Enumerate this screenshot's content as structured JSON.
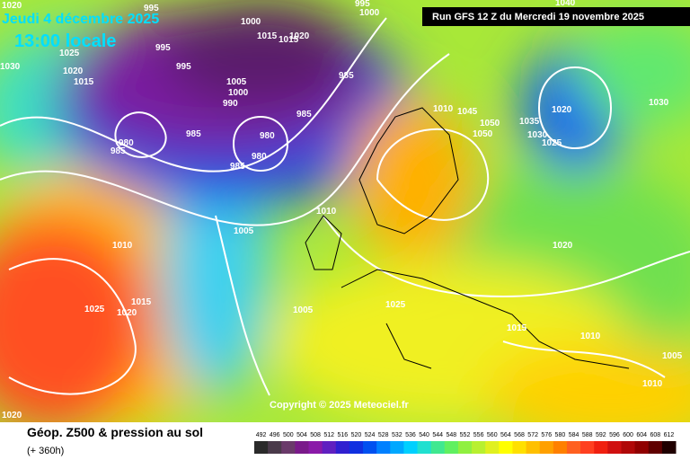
{
  "header": {
    "date": "Jeudi 4 décembre 2025",
    "time": "13:00 locale",
    "run": "Run GFS 12 Z du Mercredi 19 novembre 2025"
  },
  "copyright": "Copyright © 2025 Meteociel.fr",
  "footer": {
    "title": "Géop. Z500 & pression au sol",
    "lead": "(+ 360h)"
  },
  "isobar_labels": [
    "1020",
    "995",
    "995",
    "1000",
    "1000",
    "1015",
    "1015",
    "1020",
    "995",
    "1025",
    "1030",
    "1020",
    "995",
    "1015",
    "1005",
    "985",
    "1000",
    "990",
    "1040",
    "1020",
    "1030",
    "1010",
    "1045",
    "1050",
    "1050",
    "1035",
    "1030",
    "1025",
    "985",
    "985",
    "980",
    "985",
    "980",
    "980",
    "985",
    "1010",
    "1010",
    "1005",
    "1020",
    "1015",
    "1025",
    "1020",
    "1005",
    "1025",
    "1015",
    "1010",
    "1005",
    "1010",
    "1020"
  ],
  "colorbar": {
    "values": [
      492,
      496,
      500,
      504,
      508,
      512,
      516,
      520,
      524,
      528,
      532,
      536,
      540,
      544,
      548,
      552,
      556,
      560,
      564,
      568,
      572,
      576,
      580,
      584,
      588,
      592,
      596,
      600,
      604,
      608,
      612
    ],
    "colors": [
      "#2a2a2a",
      "#4a3a4a",
      "#6a3a6a",
      "#7a1a8a",
      "#8a1aa8",
      "#6020c0",
      "#3020d0",
      "#1030e0",
      "#0050f0",
      "#0080ff",
      "#00a8ff",
      "#00d0ff",
      "#20e0d0",
      "#40e890",
      "#60f060",
      "#90f040",
      "#b8f030",
      "#e0f020",
      "#ffff00",
      "#ffe000",
      "#ffc000",
      "#ffa000",
      "#ff8000",
      "#ff6020",
      "#ff4020",
      "#f02010",
      "#d01010",
      "#b00808",
      "#900000",
      "#600000",
      "#200000"
    ]
  }
}
